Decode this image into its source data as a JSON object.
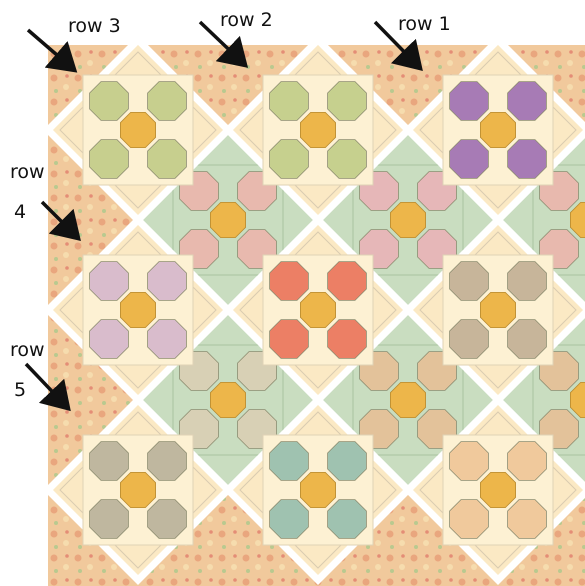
{
  "labels": [
    {
      "lines": [
        "row 3"
      ]
    },
    {
      "lines": [
        "row 2"
      ]
    },
    {
      "lines": [
        "row 1"
      ]
    },
    {
      "lines": [
        "row",
        "4"
      ]
    },
    {
      "lines": [
        "row",
        "5"
      ]
    }
  ]
}
